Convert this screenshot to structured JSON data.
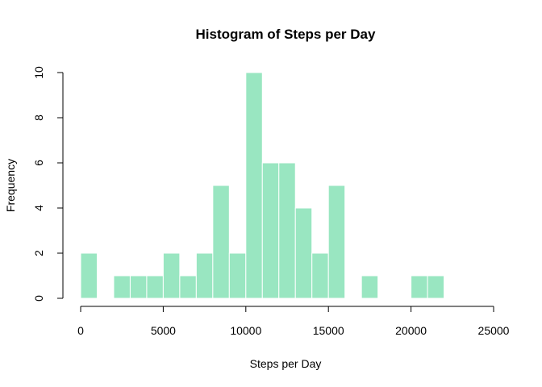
{
  "chart_data": {
    "type": "bar",
    "title": "Histogram of Steps per Day",
    "xlabel": "Steps per Day",
    "ylabel": "Frequency",
    "xlim": [
      0,
      25000
    ],
    "ylim": [
      0,
      10
    ],
    "xticks": [
      0,
      5000,
      10000,
      15000,
      20000,
      25000
    ],
    "yticks": [
      0,
      2,
      4,
      6,
      8,
      10
    ],
    "bin_width": 1000,
    "bins": [
      {
        "start": 0,
        "end": 1000,
        "count": 2
      },
      {
        "start": 1000,
        "end": 2000,
        "count": 0
      },
      {
        "start": 2000,
        "end": 3000,
        "count": 1
      },
      {
        "start": 3000,
        "end": 4000,
        "count": 1
      },
      {
        "start": 4000,
        "end": 5000,
        "count": 1
      },
      {
        "start": 5000,
        "end": 6000,
        "count": 2
      },
      {
        "start": 6000,
        "end": 7000,
        "count": 1
      },
      {
        "start": 7000,
        "end": 8000,
        "count": 2
      },
      {
        "start": 8000,
        "end": 9000,
        "count": 5
      },
      {
        "start": 9000,
        "end": 10000,
        "count": 2
      },
      {
        "start": 10000,
        "end": 11000,
        "count": 10
      },
      {
        "start": 11000,
        "end": 12000,
        "count": 6
      },
      {
        "start": 12000,
        "end": 13000,
        "count": 6
      },
      {
        "start": 13000,
        "end": 14000,
        "count": 4
      },
      {
        "start": 14000,
        "end": 15000,
        "count": 2
      },
      {
        "start": 15000,
        "end": 16000,
        "count": 5
      },
      {
        "start": 16000,
        "end": 17000,
        "count": 0
      },
      {
        "start": 17000,
        "end": 18000,
        "count": 1
      },
      {
        "start": 18000,
        "end": 19000,
        "count": 0
      },
      {
        "start": 19000,
        "end": 20000,
        "count": 0
      },
      {
        "start": 20000,
        "end": 21000,
        "count": 1
      },
      {
        "start": 21000,
        "end": 22000,
        "count": 1
      }
    ],
    "bar_color": "#99e6c1",
    "bar_edge_color": "#ffffff",
    "grid": false,
    "legend": "none"
  }
}
